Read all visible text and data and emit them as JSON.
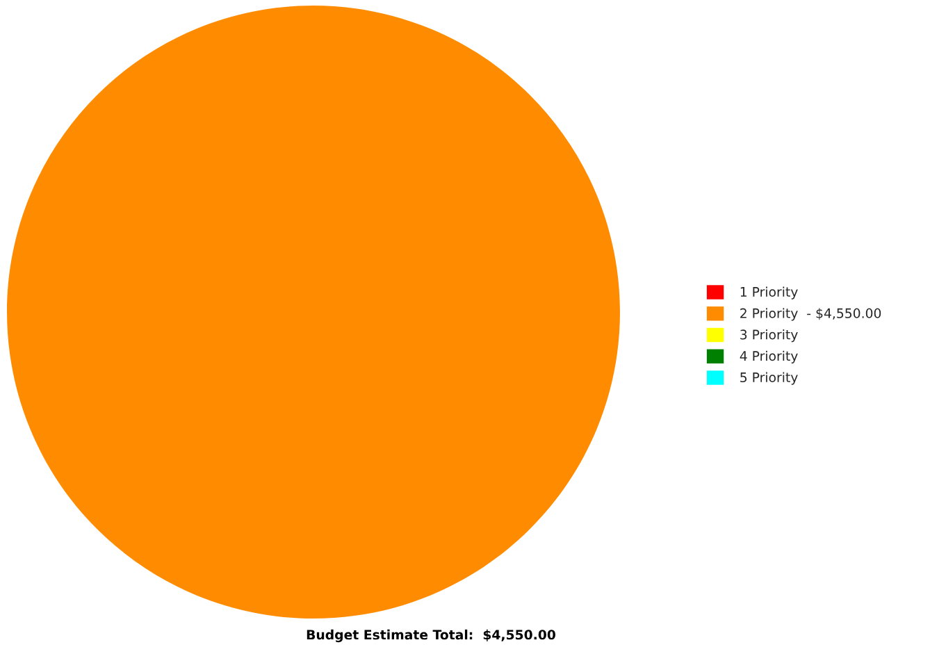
{
  "chart_data": {
    "type": "pie",
    "title": "Budget Estimate Total:  $4,550.00",
    "categories": [
      "1 Priority",
      "2 Priority  - $4,550.00",
      "3 Priority",
      "4 Priority",
      "5 Priority"
    ],
    "values": [
      0,
      100,
      0,
      0,
      0
    ],
    "colors": [
      "#ff0000",
      "#ff8c00",
      "#ffff00",
      "#008000",
      "#00ffff"
    ],
    "legend": "right"
  }
}
